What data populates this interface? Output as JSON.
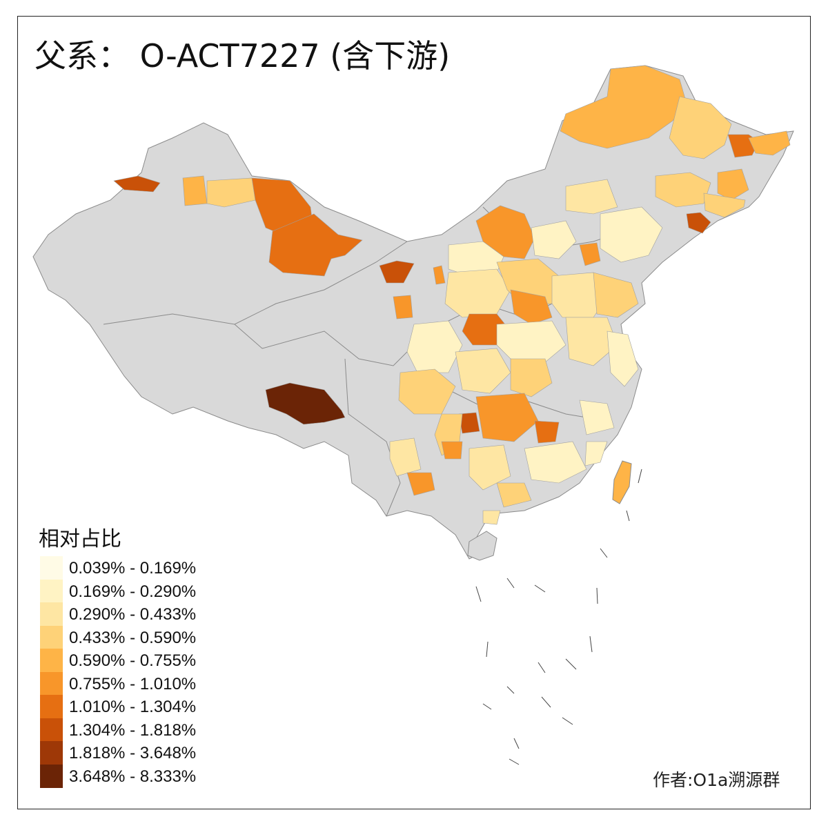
{
  "title": "父系： O-ACT7227 (含下游)",
  "legend": {
    "title": "相对占比",
    "bins": [
      {
        "label": "0.039% - 0.169%",
        "color": "#fffbe6"
      },
      {
        "label": "0.169% - 0.290%",
        "color": "#fff3c4"
      },
      {
        "label": "0.290% - 0.433%",
        "color": "#fee6a3"
      },
      {
        "label": "0.433% - 0.590%",
        "color": "#fed278"
      },
      {
        "label": "0.590% - 0.755%",
        "color": "#feb447"
      },
      {
        "label": "0.755% - 1.010%",
        "color": "#f8962a"
      },
      {
        "label": "1.010% - 1.304%",
        "color": "#e66f12"
      },
      {
        "label": "1.304% - 1.818%",
        "color": "#c95108"
      },
      {
        "label": "1.818% - 3.648%",
        "color": "#9e3807"
      },
      {
        "label": "3.648% - 8.333%",
        "color": "#6b2406"
      }
    ]
  },
  "credit": "作者:O1a溯源群",
  "colors": {
    "nodata": "#d9d9d9",
    "border": "#888888",
    "frame": "#222222"
  }
}
